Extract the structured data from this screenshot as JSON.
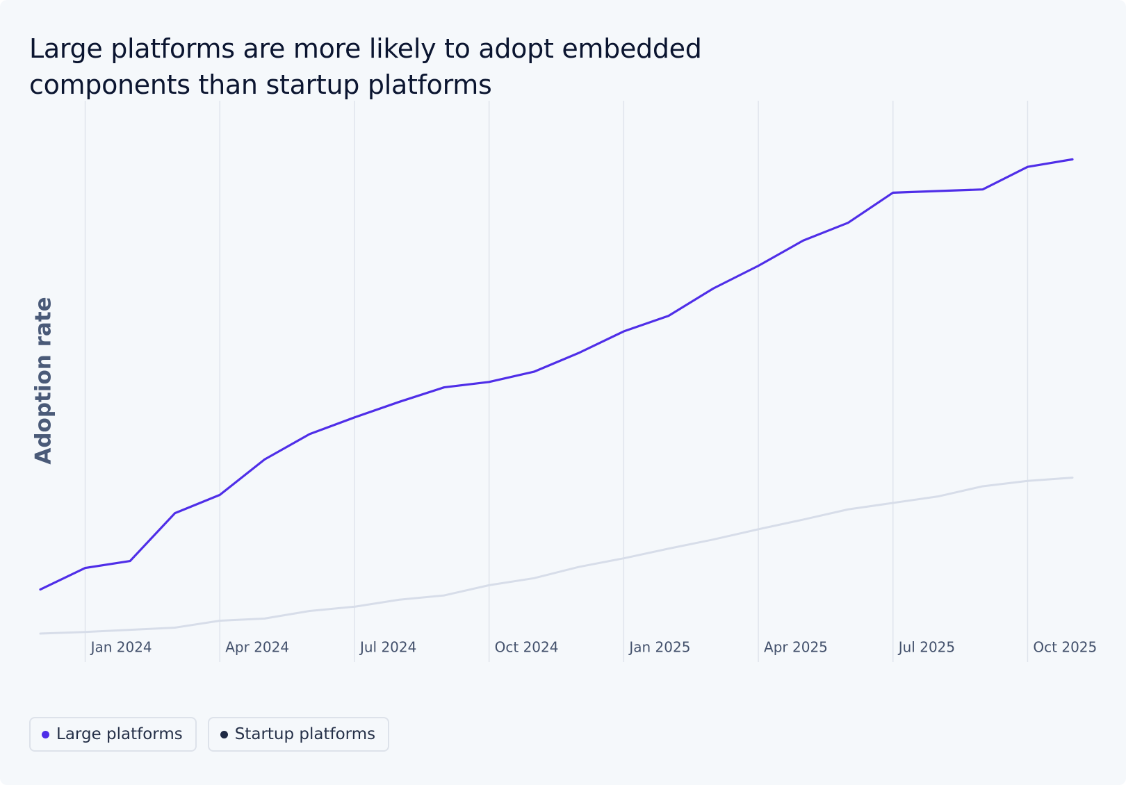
{
  "chart_data": {
    "type": "line",
    "title": "Large platforms are more likely to adopt embedded components than startup platforms",
    "y_label": "Adoption rate",
    "x": [
      "2023-12",
      "2024-01",
      "2024-02",
      "2024-03",
      "2024-04",
      "2024-05",
      "2024-06",
      "2024-07",
      "2024-08",
      "2024-09",
      "2024-10",
      "2024-11",
      "2024-12",
      "2025-01",
      "2025-02",
      "2025-03",
      "2025-04",
      "2025-05",
      "2025-06",
      "2025-07",
      "2025-08",
      "2025-09",
      "2025-10",
      "2025-11"
    ],
    "xlim": [
      "2023-12",
      "2025-11"
    ],
    "xticks": [
      {
        "value": "2024-01",
        "label": "Jan 2024"
      },
      {
        "value": "2024-04",
        "label": "Apr 2024"
      },
      {
        "value": "2024-07",
        "label": "Jul 2024"
      },
      {
        "value": "2024-10",
        "label": "Oct 2024"
      },
      {
        "value": "2025-01",
        "label": "Jan 2025"
      },
      {
        "value": "2025-04",
        "label": "Apr 2025"
      },
      {
        "value": "2025-07",
        "label": "Jul 2025"
      },
      {
        "value": "2025-10",
        "label": "Oct 2025"
      }
    ],
    "ylim": [
      0,
      100
    ],
    "grid": true,
    "series": [
      {
        "name": "Large platforms",
        "color": "#4f2ee8",
        "marker_color": "#4f2ee8",
        "values": [
          9.1,
          13.1,
          14.4,
          23.3,
          26.7,
          33.3,
          38,
          41.1,
          44,
          46.7,
          47.7,
          49.6,
          53.1,
          57.1,
          60,
          65.1,
          69.3,
          74,
          77.3,
          82.9,
          83.2,
          83.5,
          87.7,
          89.1
        ]
      },
      {
        "name": "Startup platforms",
        "color": "#d7dde9",
        "marker_color": "#1f2a44",
        "values": [
          0.9,
          1.2,
          1.6,
          2,
          3.3,
          3.7,
          5.1,
          5.9,
          7.2,
          8,
          9.9,
          11.2,
          13.3,
          14.9,
          16.7,
          18.4,
          20.3,
          22.1,
          24,
          25.2,
          26.4,
          28.3,
          29.3,
          29.9
        ]
      }
    ]
  }
}
